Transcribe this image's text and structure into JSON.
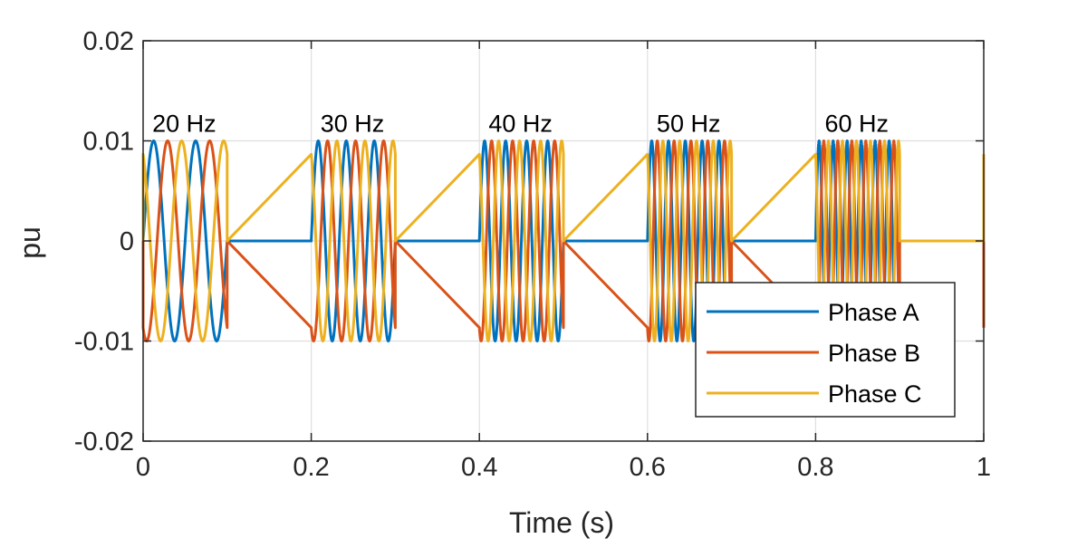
{
  "chart_data": {
    "type": "line",
    "title": "",
    "xlabel": "Time (s)",
    "ylabel": "pu",
    "xlim": [
      0,
      1
    ],
    "ylim": [
      -0.02,
      0.02
    ],
    "x_ticks": [
      0,
      0.2,
      0.4,
      0.6,
      0.8,
      1
    ],
    "y_ticks": [
      0.02,
      0.01,
      0,
      -0.01,
      -0.02
    ],
    "x_tick_labels": [
      "0",
      "0.2",
      "0.4",
      "0.6",
      "0.8",
      "1"
    ],
    "y_tick_labels": [
      "0.02",
      "0.01",
      "0",
      "-0.01",
      "-0.02"
    ],
    "grid": true,
    "legend_location": "bottom-right",
    "amplitude": 0.01,
    "phase_shifts_deg": [
      0,
      -120,
      120
    ],
    "bursts": [
      {
        "label": "20 Hz",
        "start": 0.0,
        "end": 0.1,
        "frequency_hz": 20
      },
      {
        "label": "30 Hz",
        "start": 0.2,
        "end": 0.3,
        "frequency_hz": 30
      },
      {
        "label": "40 Hz",
        "start": 0.4,
        "end": 0.5,
        "frequency_hz": 40
      },
      {
        "label": "50 Hz",
        "start": 0.6,
        "end": 0.7,
        "frequency_hz": 50
      },
      {
        "label": "60 Hz",
        "start": 0.8,
        "end": 0.9,
        "frequency_hz": 60
      }
    ],
    "series": [
      {
        "name": "Phase A",
        "color": "#0072BD"
      },
      {
        "name": "Phase B",
        "color": "#D95319"
      },
      {
        "name": "Phase C",
        "color": "#EDB120"
      }
    ]
  }
}
